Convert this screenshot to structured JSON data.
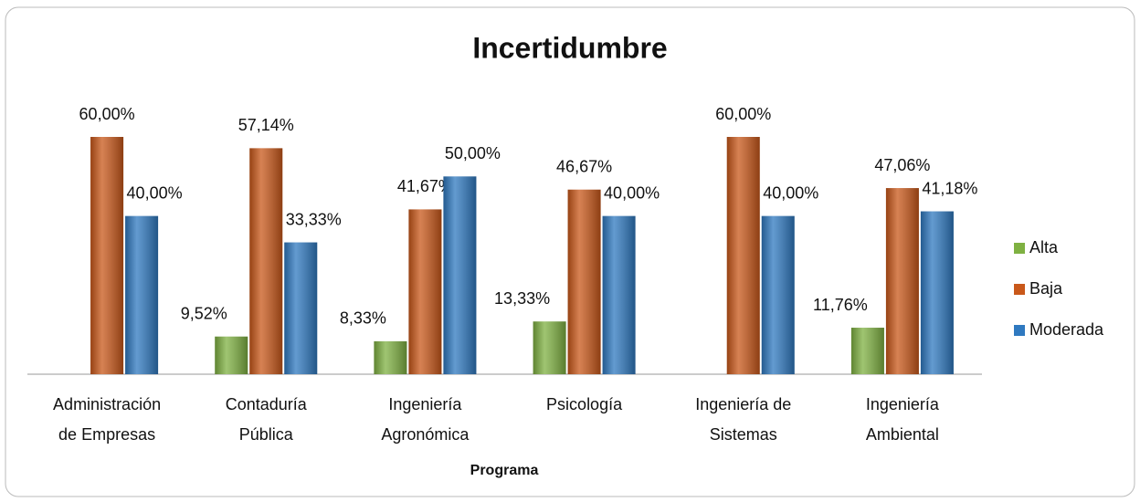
{
  "chart_data": {
    "type": "bar",
    "title": "Incertidumbre",
    "x_label": "Programa",
    "categories": [
      "Administración\nde Empresas",
      "Contaduría\nPública",
      "Ingeniería\nAgronómica",
      "Psicología",
      "Ingeniería de\nSistemas",
      "Ingeniería\nAmbiental"
    ],
    "series": [
      {
        "name": "Alta",
        "color": "#7fb142",
        "values": [
          null,
          9.52,
          8.33,
          13.33,
          null,
          11.76
        ],
        "value_labels": [
          null,
          "9,52%",
          "8,33%",
          "13,33%",
          null,
          "11,76%"
        ]
      },
      {
        "name": "Baja",
        "color": "#c9581a",
        "values": [
          60,
          57.14,
          41.67,
          46.67,
          60,
          47.06
        ],
        "value_labels": [
          "60,00%",
          "57,14%",
          "41,67%",
          "46,67%",
          "60,00%",
          "47,06%"
        ]
      },
      {
        "name": "Moderada",
        "color": "#2f79c0",
        "values": [
          40,
          33.33,
          50,
          40,
          40,
          41.18
        ],
        "value_labels": [
          "40,00%",
          "33,33%",
          "50,00%",
          "40,00%",
          "40,00%",
          "41,18%"
        ]
      }
    ],
    "legend": "right"
  }
}
